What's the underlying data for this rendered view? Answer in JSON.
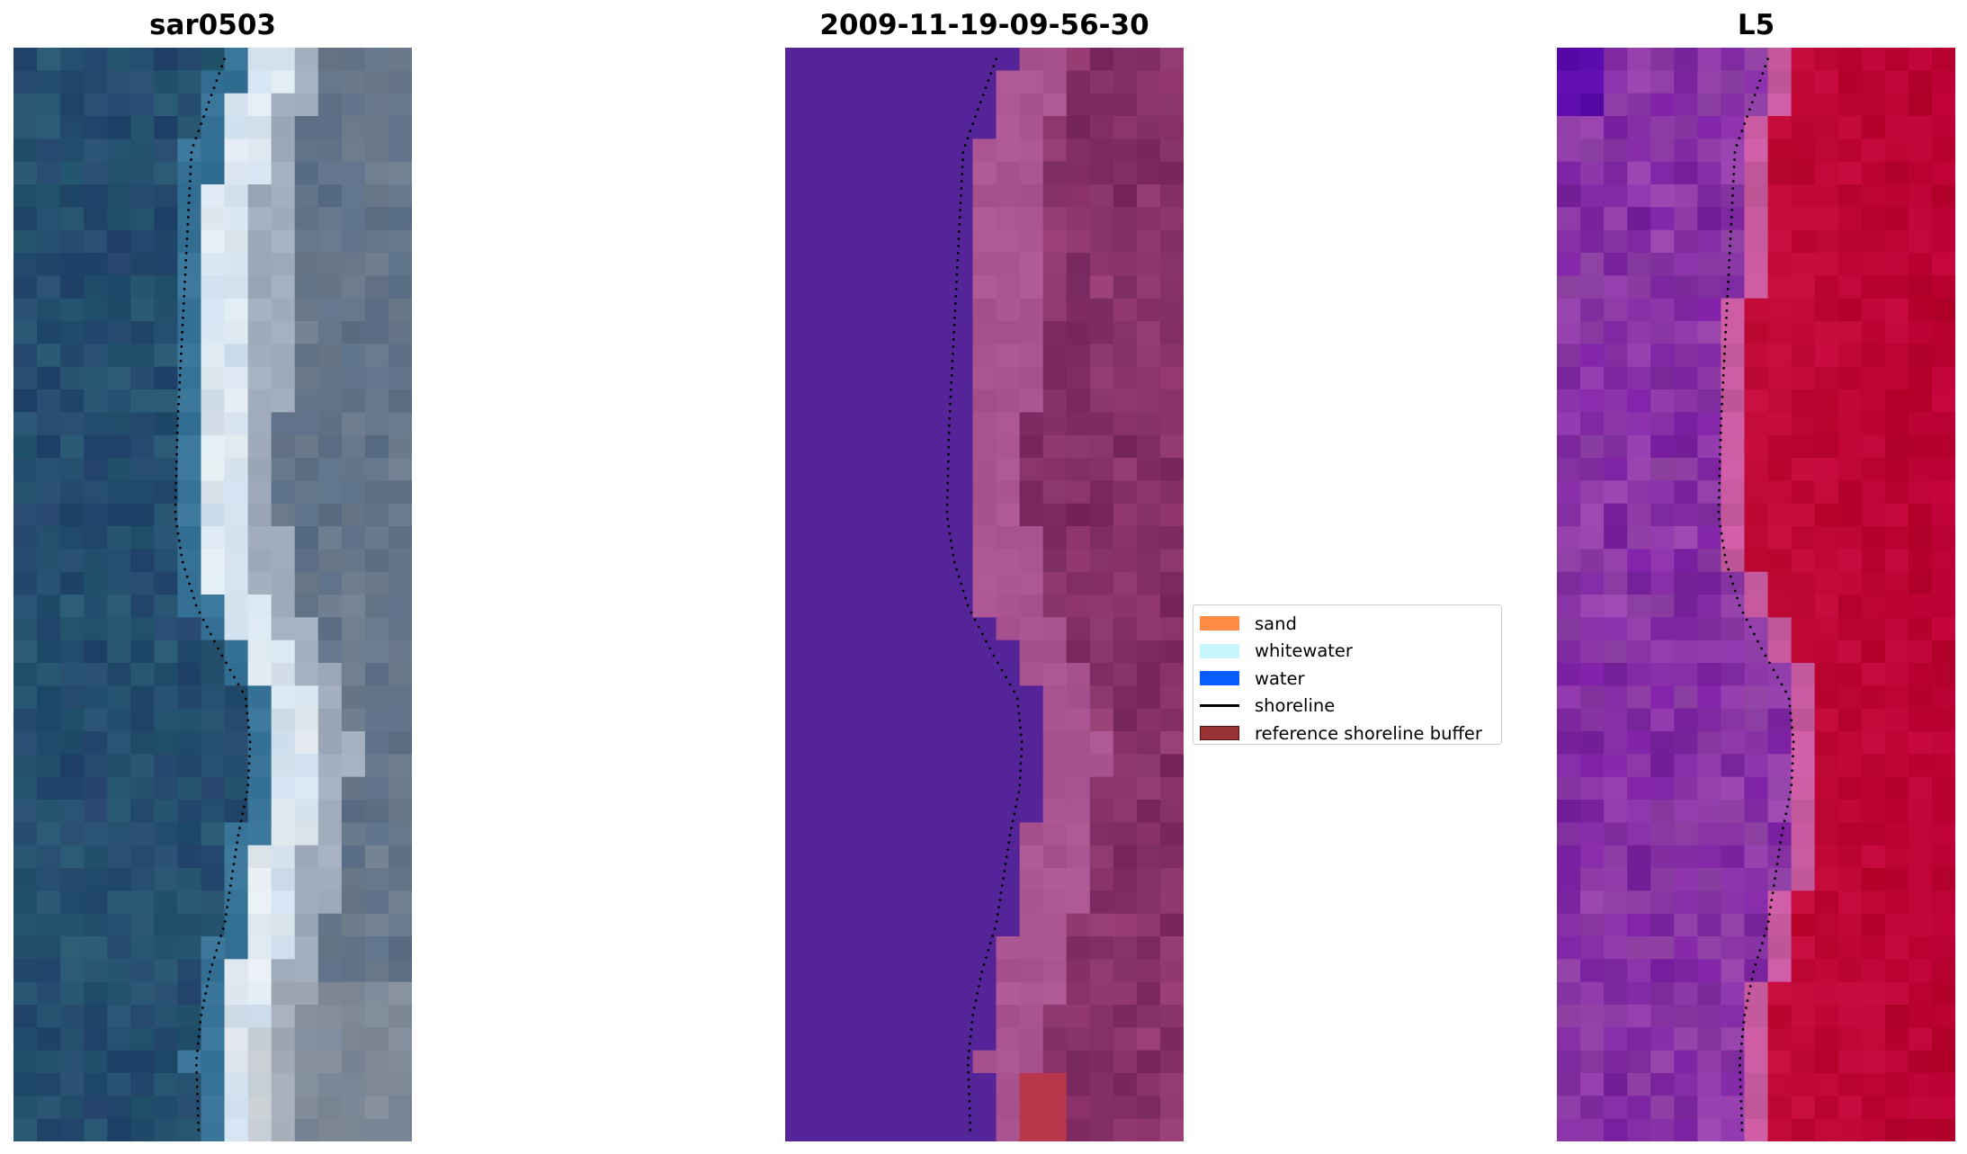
{
  "chart_data": [
    {
      "type": "heatmap",
      "title": "sar0503",
      "image_kind": "rgb",
      "grid": false,
      "axes": "off"
    },
    {
      "type": "heatmap",
      "title": "2009-11-19-09-56-30",
      "image_kind": "classification",
      "grid": false,
      "axes": "off"
    },
    {
      "type": "heatmap",
      "title": "L5",
      "image_kind": "index",
      "grid": false,
      "axes": "off"
    }
  ],
  "legend": {
    "placement": "center",
    "items": [
      {
        "label": "sand",
        "kind": "patch",
        "color": "#ff8c42"
      },
      {
        "label": "whitewater",
        "kind": "patch",
        "color": "#c8f8fc"
      },
      {
        "label": "water",
        "kind": "patch",
        "color": "#0a5cff"
      },
      {
        "label": "shoreline",
        "kind": "line",
        "color": "#000000"
      },
      {
        "label": "reference shoreline buffer",
        "kind": "patch",
        "color": "#993333"
      }
    ]
  }
}
